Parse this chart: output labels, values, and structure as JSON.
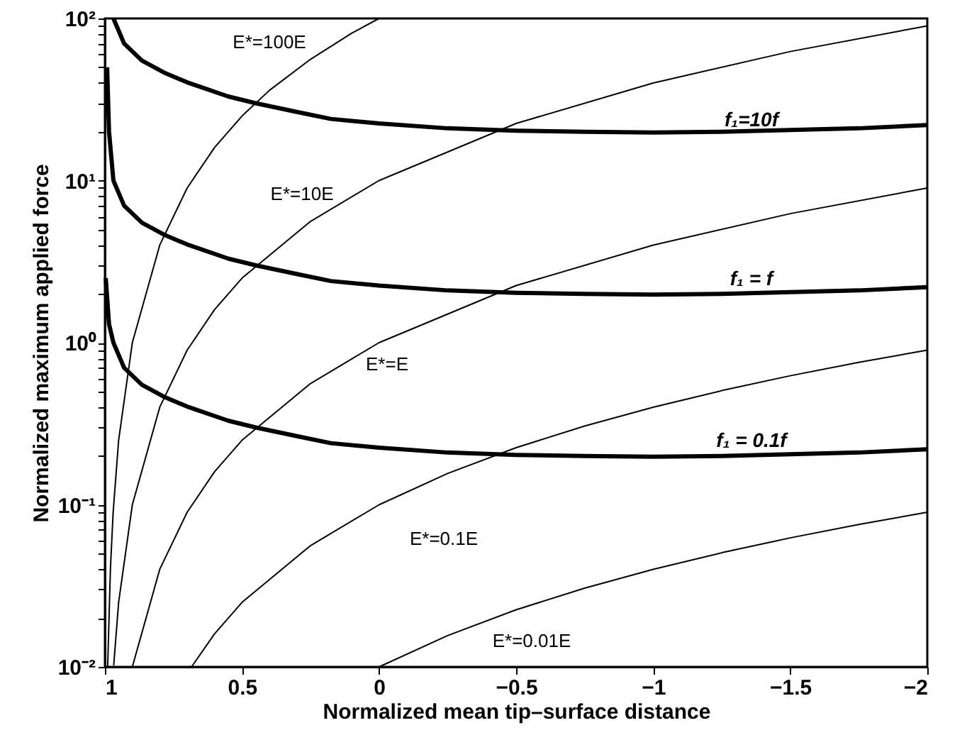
{
  "chart_data": {
    "type": "line",
    "xlabel": "Normalized mean tip–surface distance",
    "ylabel": "Normalized maximum applied force",
    "log": "y",
    "grid": false,
    "marker": "none",
    "line_style": "solid",
    "xlim": [
      1,
      -2
    ],
    "xticks": [
      1,
      0.5,
      0,
      {
        "value": -0.5,
        "label": "−0.5"
      },
      {
        "value": -1,
        "label": "−1"
      },
      {
        "value": -1.5,
        "label": "−1.5"
      },
      {
        "value": -2,
        "label": "−2"
      }
    ],
    "ylim": [
      0.01,
      100
    ],
    "yticks": [
      {
        "value": 0.01,
        "label": "10⁻²"
      },
      {
        "value": 0.02,
        "label": null
      },
      {
        "value": 0.03,
        "label": null
      },
      {
        "value": 0.04,
        "label": null
      },
      {
        "value": 0.05,
        "label": null
      },
      {
        "value": 0.06,
        "label": null
      },
      {
        "value": 0.07,
        "label": null
      },
      {
        "value": 0.08,
        "label": null
      },
      {
        "value": 0.09,
        "label": null
      },
      {
        "value": 0.1,
        "label": "10⁻¹"
      },
      {
        "value": 0.2,
        "label": null
      },
      {
        "value": 0.3,
        "label": null
      },
      {
        "value": 0.4,
        "label": null
      },
      {
        "value": 0.5,
        "label": null
      },
      {
        "value": 0.6,
        "label": null
      },
      {
        "value": 0.7,
        "label": null
      },
      {
        "value": 0.8,
        "label": null
      },
      {
        "value": 0.9,
        "label": null
      },
      {
        "value": 1,
        "label": "10⁰"
      },
      {
        "value": 2,
        "label": null
      },
      {
        "value": 3,
        "label": null
      },
      {
        "value": 4,
        "label": null
      },
      {
        "value": 5,
        "label": null
      },
      {
        "value": 6,
        "label": null
      },
      {
        "value": 7,
        "label": null
      },
      {
        "value": 8,
        "label": null
      },
      {
        "value": 9,
        "label": null
      },
      {
        "value": 10,
        "label": "10¹"
      },
      {
        "value": 20,
        "label": null
      },
      {
        "value": 30,
        "label": null
      },
      {
        "value": 40,
        "label": null
      },
      {
        "value": 50,
        "label": null
      },
      {
        "value": 60,
        "label": null
      },
      {
        "value": 70,
        "label": null
      },
      {
        "value": 80,
        "label": null
      },
      {
        "value": 90,
        "label": null
      },
      {
        "value": 100,
        "label": "10²"
      }
    ],
    "series": [
      {
        "color": "#000000",
        "x": [
          0.997,
          0.985,
          0.969,
          0.93,
          0.865,
          0.78,
          0.694,
          0.55,
          0.45,
          0.3,
          0.176,
          0,
          -0.25,
          -0.5,
          -0.75,
          -1,
          -1.25,
          -1.5,
          -1.75,
          -2
        ],
        "values": [
          2.5,
          1.3,
          1.0,
          0.7,
          0.55,
          0.46,
          0.4,
          0.33,
          0.3,
          0.265,
          0.24,
          0.225,
          0.21,
          0.203,
          0.2,
          0.198,
          0.2,
          0.205,
          0.21,
          0.22
        ]
      },
      {
        "color": "#000000",
        "x": [
          0.992,
          0.985,
          0.969,
          0.93,
          0.865,
          0.78,
          0.694,
          0.55,
          0.45,
          0.3,
          0.176,
          0,
          -0.25,
          -0.5,
          -0.75,
          -1,
          -1.25,
          -1.5,
          -1.75,
          -2
        ],
        "values": [
          50,
          20,
          10,
          7,
          5.5,
          4.6,
          4.0,
          3.3,
          3.0,
          2.65,
          2.4,
          2.25,
          2.1,
          2.03,
          2.0,
          1.98,
          2.0,
          2.05,
          2.1,
          2.2
        ]
      },
      {
        "color": "#000000",
        "x": [
          0.969,
          0.93,
          0.865,
          0.78,
          0.694,
          0.55,
          0.45,
          0.3,
          0.176,
          0,
          -0.25,
          -0.5,
          -0.75,
          -1,
          -1.25,
          -1.5,
          -1.75,
          -2
        ],
        "values": [
          100,
          70,
          55,
          46,
          40,
          33,
          30,
          26.5,
          24,
          22.5,
          21,
          20.3,
          20,
          19.8,
          20,
          20.5,
          21,
          22
        ]
      },
      {
        "color": "#000000",
        "x": [
          0.99,
          0.98,
          0.97,
          0.95,
          0.9,
          0.8,
          0.7,
          0.6,
          0.5,
          0.4,
          0.25,
          0.1,
          0
        ],
        "values": [
          0.01,
          0.04,
          0.09,
          0.25,
          1,
          4,
          9,
          16,
          25,
          36,
          56,
          81,
          100
        ]
      },
      {
        "color": "#000000",
        "x": [
          0.968,
          0.95,
          0.9,
          0.8,
          0.7,
          0.6,
          0.5,
          0.25,
          0,
          -0.5,
          -1,
          -1.5,
          -2
        ],
        "values": [
          0.0102,
          0.025,
          0.1,
          0.4,
          0.9,
          1.6,
          2.5,
          5.6,
          10,
          22.5,
          40,
          62.5,
          90
        ]
      },
      {
        "color": "#000000",
        "x": [
          0.9,
          0.8,
          0.7,
          0.6,
          0.5,
          0.25,
          0,
          -0.5,
          -1,
          -1.5,
          -2
        ],
        "values": [
          0.01,
          0.04,
          0.09,
          0.16,
          0.25,
          0.56,
          1,
          2.25,
          4,
          6.25,
          9
        ]
      },
      {
        "color": "#000000",
        "x": [
          0.684,
          0.6,
          0.5,
          0.25,
          0,
          -0.25,
          -0.5,
          -0.75,
          -1,
          -1.25,
          -1.5,
          -1.75,
          -2
        ],
        "values": [
          0.01,
          0.016,
          0.025,
          0.056,
          0.1,
          0.156,
          0.225,
          0.306,
          0.4,
          0.506,
          0.625,
          0.756,
          0.9
        ]
      },
      {
        "color": "#000000",
        "x": [
          0,
          -0.25,
          -0.5,
          -0.75,
          -1,
          -1.25,
          -1.5,
          -1.75,
          -2
        ],
        "values": [
          0.01,
          0.0156,
          0.0225,
          0.0306,
          0.04,
          0.0506,
          0.0625,
          0.0756,
          0.09
        ]
      }
    ],
    "annotations": [
      "E*=100E",
      "E*=10E",
      "E*=E",
      "E*=0.1E",
      "E*=0.01E",
      "f₁=10f",
      "f₁ = f",
      "f₁ = 0.1f"
    ]
  }
}
